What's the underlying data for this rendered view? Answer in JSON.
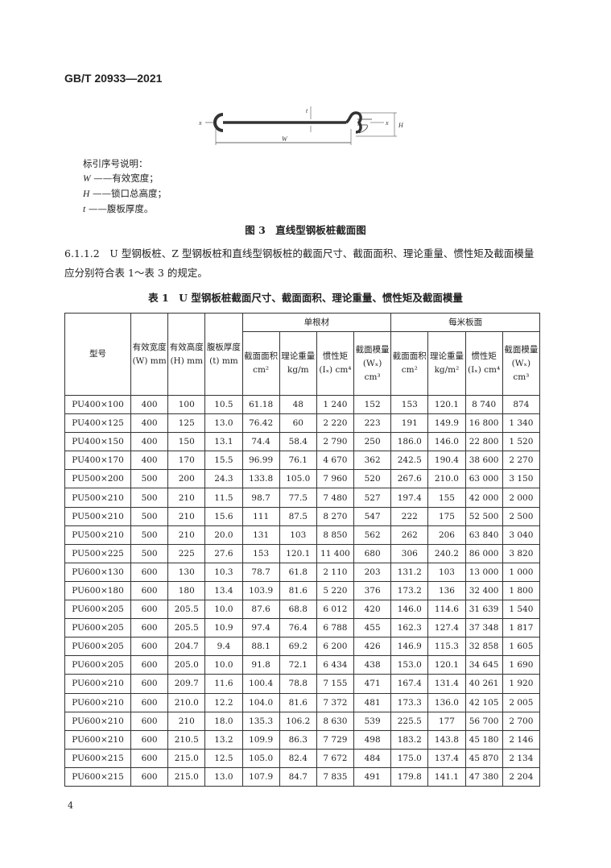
{
  "header": {
    "standard_number": "GB/T 20933—2021"
  },
  "figure": {
    "labels": {
      "x_left": "x",
      "x_right": "x",
      "t": "t",
      "H": "H",
      "W": "W"
    },
    "legend_title": "标引序号说明：",
    "legend": [
      {
        "sym": "W",
        "text": "——有效宽度；"
      },
      {
        "sym": "H",
        "text": "——锁口总高度；"
      },
      {
        "sym": "t",
        "text": "——腹板厚度。"
      }
    ],
    "caption": "图 3　直线型钢板桩截面图"
  },
  "paragraph": "6.1.1.2　U 型钢板桩、Z 型钢板桩和直线型钢板桩的截面尺寸、截面面积、理论重量、惯性矩及截面模量应分别符合表 1～表 3 的规定。",
  "table": {
    "caption": "表 1　U 型钢板桩截面尺寸、截面面积、理论重量、惯性矩及截面模量",
    "group_headers": [
      "单根材",
      "每米板面"
    ],
    "headers": [
      "型号",
      "有效宽度(W) mm",
      "有效高度(H) mm",
      "腹板厚度(t) mm",
      "截面面积 cm²",
      "理论重量 kg/m",
      "惯性矩 (Iₓ) cm⁴",
      "截面模量 (Wₓ) cm³",
      "截面面积 cm²",
      "理论重量 kg/m²",
      "惯性矩 (Iₓ) cm⁴",
      "截面模量 (Wₓ) cm³"
    ],
    "rows": [
      [
        "PU400×100",
        "400",
        "100",
        "10.5",
        "61.18",
        "48",
        "1 240",
        "152",
        "153",
        "120.1",
        "8 740",
        "874"
      ],
      [
        "PU400×125",
        "400",
        "125",
        "13.0",
        "76.42",
        "60",
        "2 220",
        "223",
        "191",
        "149.9",
        "16 800",
        "1 340"
      ],
      [
        "PU400×150",
        "400",
        "150",
        "13.1",
        "74.4",
        "58.4",
        "2 790",
        "250",
        "186.0",
        "146.0",
        "22 800",
        "1 520"
      ],
      [
        "PU400×170",
        "400",
        "170",
        "15.5",
        "96.99",
        "76.1",
        "4 670",
        "362",
        "242.5",
        "190.4",
        "38 600",
        "2 270"
      ],
      [
        "PU500×200",
        "500",
        "200",
        "24.3",
        "133.8",
        "105.0",
        "7 960",
        "520",
        "267.6",
        "210.0",
        "63 000",
        "3 150"
      ],
      [
        "PU500×210",
        "500",
        "210",
        "11.5",
        "98.7",
        "77.5",
        "7 480",
        "527",
        "197.4",
        "155",
        "42 000",
        "2 000"
      ],
      [
        "PU500×210",
        "500",
        "210",
        "15.6",
        "111",
        "87.5",
        "8 270",
        "547",
        "222",
        "175",
        "52 500",
        "2 500"
      ],
      [
        "PU500×210",
        "500",
        "210",
        "20.0",
        "131",
        "103",
        "8 850",
        "562",
        "262",
        "206",
        "63 840",
        "3 040"
      ],
      [
        "PU500×225",
        "500",
        "225",
        "27.6",
        "153",
        "120.1",
        "11 400",
        "680",
        "306",
        "240.2",
        "86 000",
        "3 820"
      ],
      [
        "PU600×130",
        "600",
        "130",
        "10.3",
        "78.7",
        "61.8",
        "2 110",
        "203",
        "131.2",
        "103",
        "13 000",
        "1 000"
      ],
      [
        "PU600×180",
        "600",
        "180",
        "13.4",
        "103.9",
        "81.6",
        "5 220",
        "376",
        "173.2",
        "136",
        "32 400",
        "1 800"
      ],
      [
        "PU600×205",
        "600",
        "205.5",
        "10.0",
        "87.6",
        "68.8",
        "6 012",
        "420",
        "146.0",
        "114.6",
        "31 639",
        "1 540"
      ],
      [
        "PU600×205",
        "600",
        "205.5",
        "10.9",
        "97.4",
        "76.4",
        "6 788",
        "455",
        "162.3",
        "127.4",
        "37 348",
        "1 817"
      ],
      [
        "PU600×205",
        "600",
        "204.7",
        "9.4",
        "88.1",
        "69.2",
        "6 200",
        "426",
        "146.9",
        "115.3",
        "32 858",
        "1 605"
      ],
      [
        "PU600×205",
        "600",
        "205.0",
        "10.0",
        "91.8",
        "72.1",
        "6 434",
        "438",
        "153.0",
        "120.1",
        "34 645",
        "1 690"
      ],
      [
        "PU600×210",
        "600",
        "209.7",
        "11.6",
        "100.4",
        "78.8",
        "7 155",
        "471",
        "167.4",
        "131.4",
        "40 261",
        "1 920"
      ],
      [
        "PU600×210",
        "600",
        "210.0",
        "12.2",
        "104.0",
        "81.6",
        "7 372",
        "481",
        "173.3",
        "136.0",
        "42 105",
        "2 005"
      ],
      [
        "PU600×210",
        "600",
        "210",
        "18.0",
        "135.3",
        "106.2",
        "8 630",
        "539",
        "225.5",
        "177",
        "56 700",
        "2 700"
      ],
      [
        "PU600×210",
        "600",
        "210.5",
        "13.2",
        "109.9",
        "86.3",
        "7 729",
        "498",
        "183.2",
        "143.8",
        "45 180",
        "2 146"
      ],
      [
        "PU600×215",
        "600",
        "215.0",
        "12.5",
        "105.0",
        "82.4",
        "7 672",
        "484",
        "175.0",
        "137.4",
        "45 870",
        "2 134"
      ],
      [
        "PU600×215",
        "600",
        "215.0",
        "13.0",
        "107.9",
        "84.7",
        "7 835",
        "491",
        "179.8",
        "141.1",
        "47 380",
        "2 204"
      ]
    ]
  },
  "footer": {
    "page_number": "4"
  }
}
